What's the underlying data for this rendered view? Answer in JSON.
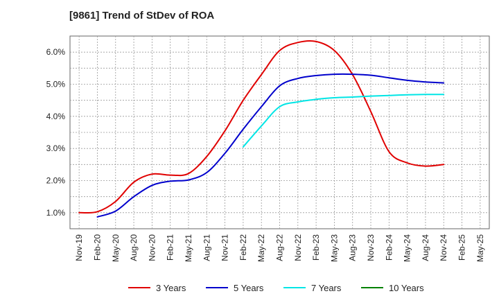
{
  "chart_data": {
    "type": "line",
    "title": "[9861]  Trend of StDev of ROA",
    "x": [
      "Nov-19",
      "Feb-20",
      "May-20",
      "Aug-20",
      "Nov-20",
      "Feb-21",
      "May-21",
      "Aug-21",
      "Nov-21",
      "Feb-22",
      "May-22",
      "Aug-22",
      "Nov-22",
      "Feb-23",
      "May-23",
      "Aug-23",
      "Nov-23",
      "Feb-24",
      "May-24",
      "Aug-24",
      "Nov-24",
      "Feb-25",
      "May-25"
    ],
    "y_tick_labels": [
      "1.0%",
      "2.0%",
      "3.0%",
      "4.0%",
      "5.0%",
      "6.0%"
    ],
    "y_ticks": [
      1.0,
      2.0,
      3.0,
      4.0,
      5.0,
      6.0
    ],
    "ylim": [
      0.5,
      6.5
    ],
    "grid": true,
    "legend_position": "bottom",
    "series": [
      {
        "name": "3 Years",
        "color": "#e00000",
        "values": [
          1.0,
          1.03,
          1.35,
          1.95,
          2.2,
          2.17,
          2.22,
          2.75,
          3.55,
          4.5,
          5.3,
          6.05,
          6.3,
          6.33,
          6.05,
          5.3,
          4.15,
          2.9,
          2.55,
          2.45,
          2.5,
          null,
          null
        ]
      },
      {
        "name": "5 Years",
        "color": "#0000cc",
        "values": [
          null,
          0.87,
          1.05,
          1.5,
          1.85,
          1.98,
          2.02,
          2.25,
          2.85,
          3.6,
          4.3,
          4.95,
          5.18,
          5.27,
          5.31,
          5.31,
          5.28,
          5.2,
          5.12,
          5.07,
          5.04,
          null,
          null
        ]
      },
      {
        "name": "7 Years",
        "color": "#00e5e5",
        "values": [
          null,
          null,
          null,
          null,
          null,
          null,
          null,
          null,
          null,
          3.05,
          3.7,
          4.3,
          4.45,
          4.53,
          4.58,
          4.6,
          4.63,
          4.65,
          4.67,
          4.68,
          4.68,
          null,
          null
        ]
      },
      {
        "name": "10 Years",
        "color": "#008000",
        "values": [
          null,
          null,
          null,
          null,
          null,
          null,
          null,
          null,
          null,
          null,
          null,
          null,
          null,
          null,
          null,
          null,
          null,
          null,
          null,
          null,
          null,
          null,
          null
        ]
      }
    ]
  }
}
